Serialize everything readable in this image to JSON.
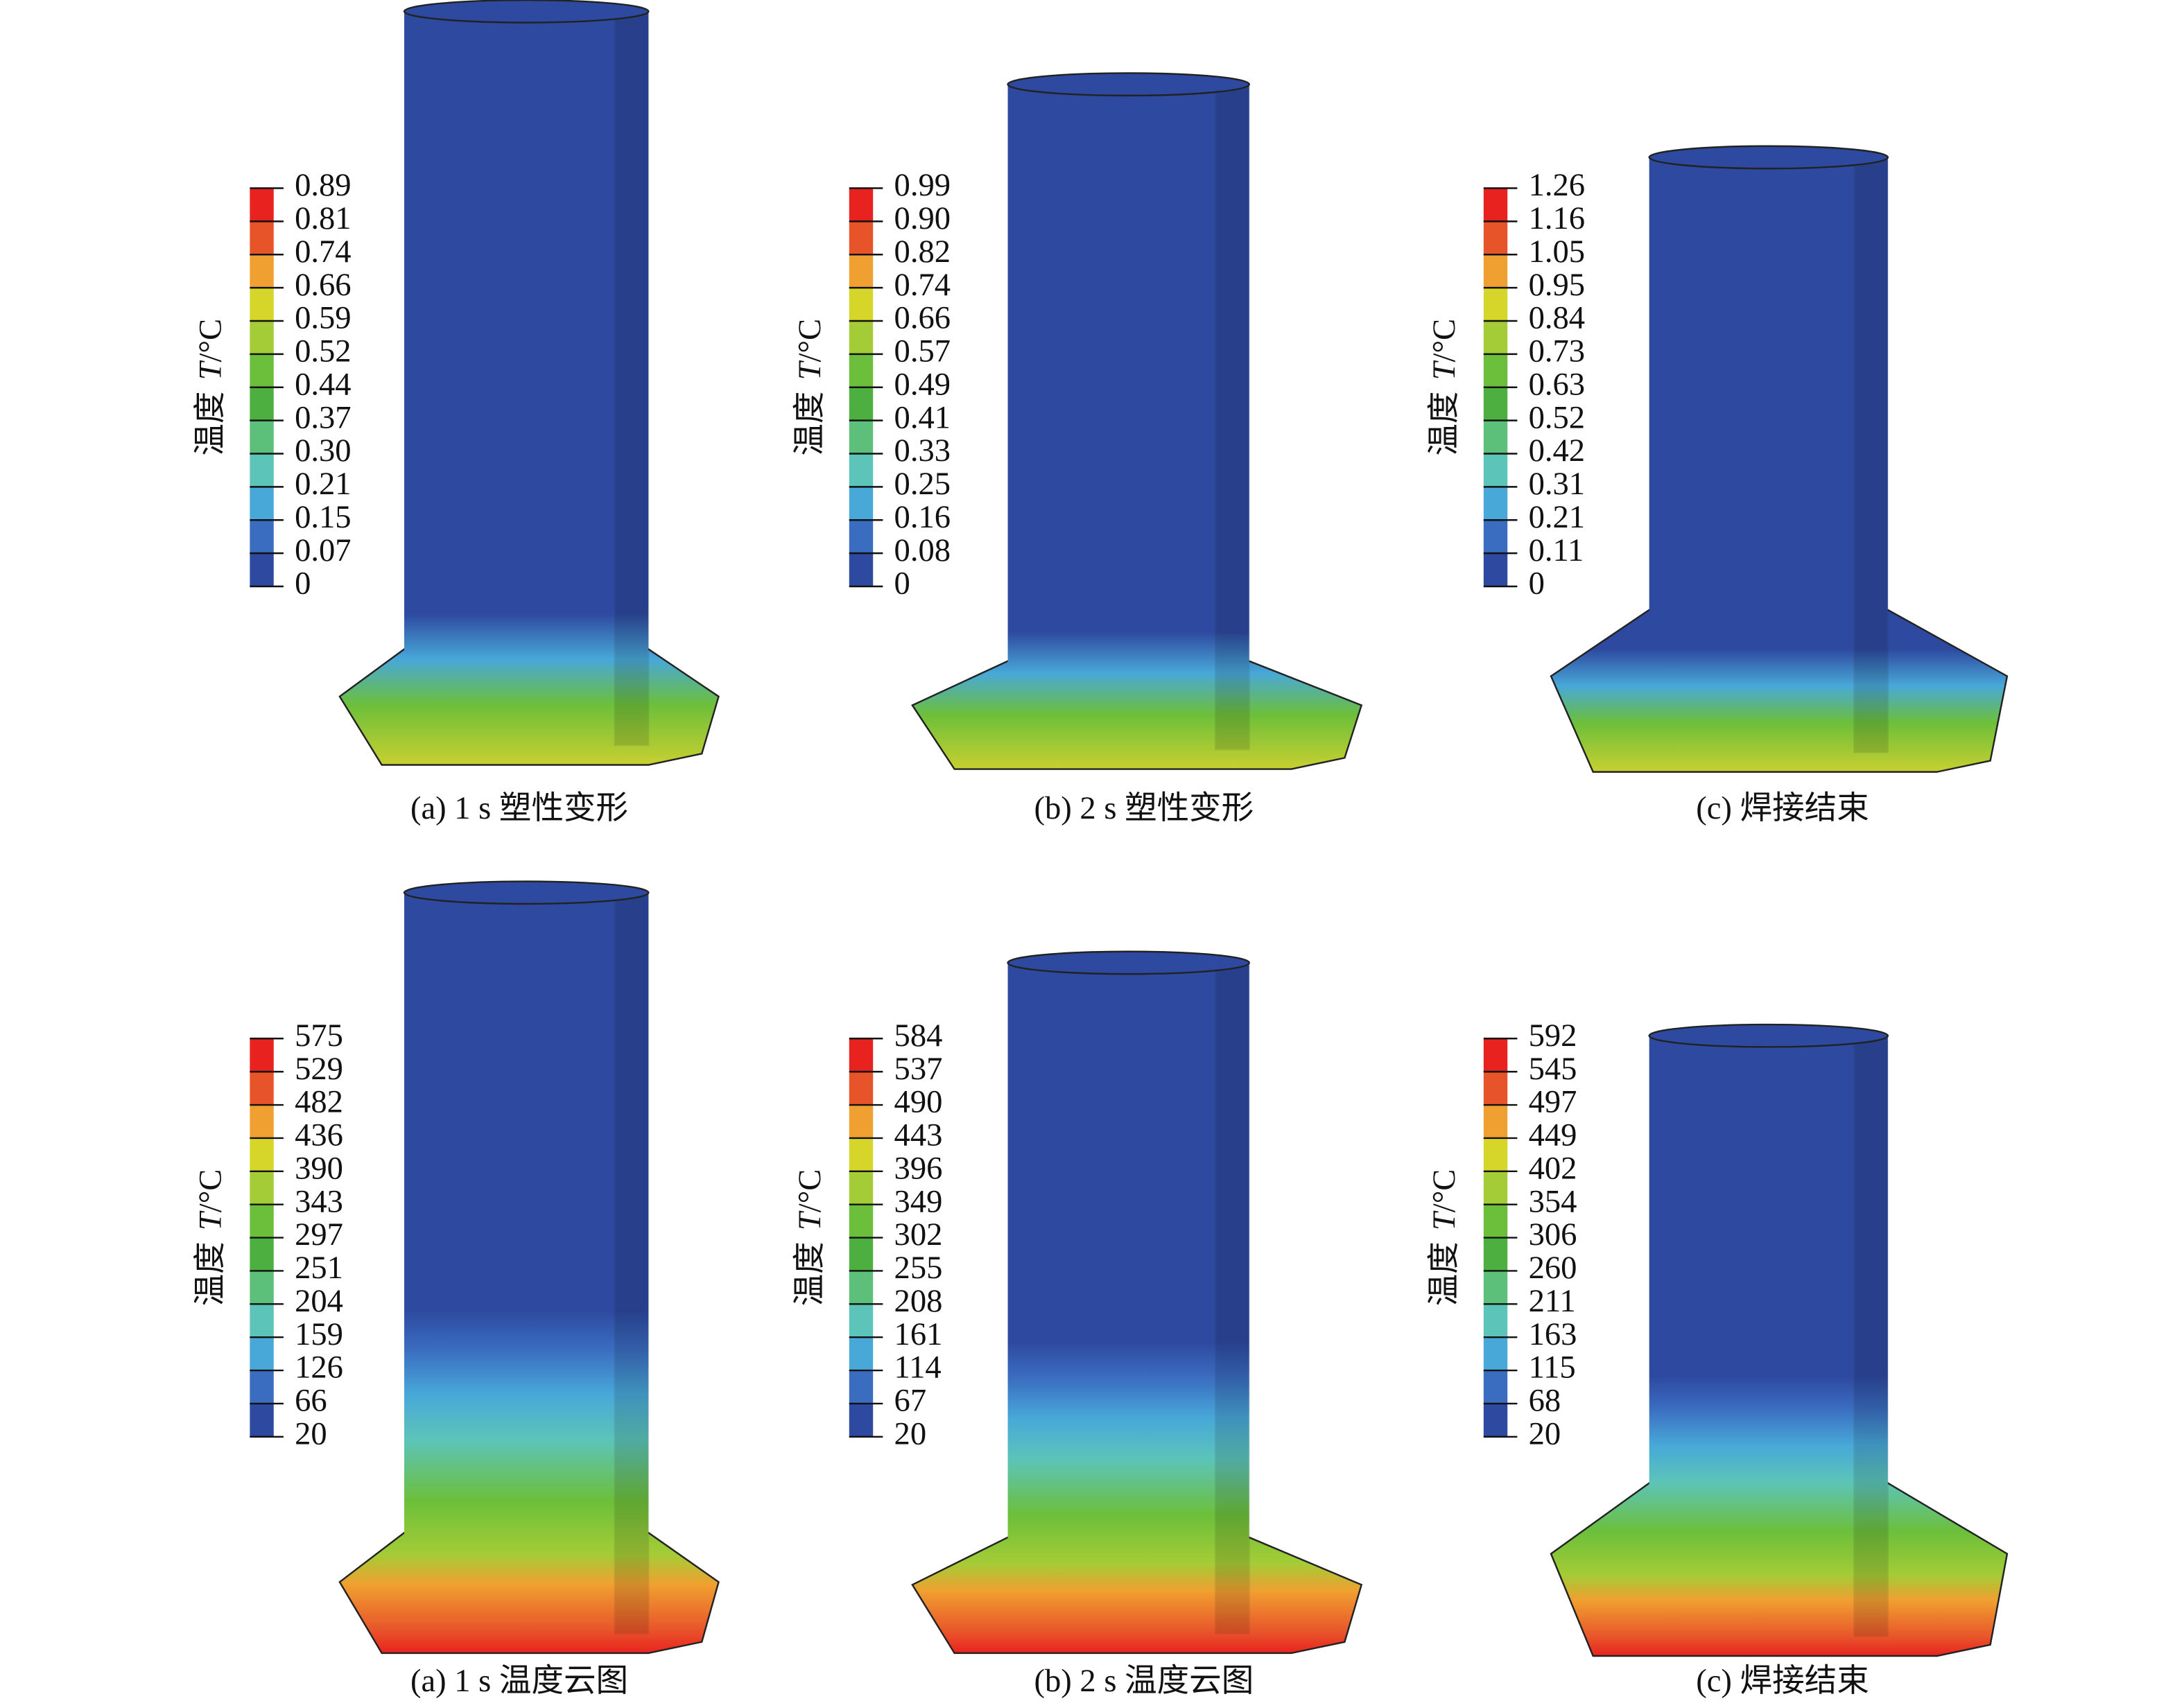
{
  "panels": [
    {
      "caption": "(a) 1 s 塑性变形",
      "legend_name": "温度",
      "legend_symbol": "T",
      "legend_unit": "/°C",
      "ticks": [
        "0.89",
        "0.81",
        "0.74",
        "0.66",
        "0.59",
        "0.52",
        "0.44",
        "0.37",
        "0.30",
        "0.21",
        "0.15",
        "0.07",
        "0"
      ]
    },
    {
      "caption": "(b) 2 s 塑性变形",
      "legend_name": "温度",
      "legend_symbol": "T",
      "legend_unit": "/°C",
      "ticks": [
        "0.99",
        "0.90",
        "0.82",
        "0.74",
        "0.66",
        "0.57",
        "0.49",
        "0.41",
        "0.33",
        "0.25",
        "0.16",
        "0.08",
        "0"
      ]
    },
    {
      "caption": "(c) 焊接结束",
      "legend_name": "温度",
      "legend_symbol": "T",
      "legend_unit": "/°C",
      "ticks": [
        "1.26",
        "1.16",
        "1.05",
        "0.95",
        "0.84",
        "0.73",
        "0.63",
        "0.52",
        "0.42",
        "0.31",
        "0.21",
        "0.11",
        "0"
      ]
    },
    {
      "caption": "(a) 1 s 温度云图",
      "legend_name": "温度",
      "legend_symbol": "T",
      "legend_unit": "/°C",
      "ticks": [
        "575",
        "529",
        "482",
        "436",
        "390",
        "343",
        "297",
        "251",
        "204",
        "159",
        "126",
        "66",
        "20"
      ]
    },
    {
      "caption": "(b) 2 s 温度云图",
      "legend_name": "温度",
      "legend_symbol": "T",
      "legend_unit": "/°C",
      "ticks": [
        "584",
        "537",
        "490",
        "443",
        "396",
        "349",
        "302",
        "255",
        "208",
        "161",
        "114",
        "67",
        "20"
      ]
    },
    {
      "caption": "(c) 焊接结束",
      "legend_name": "温度",
      "legend_symbol": "T",
      "legend_unit": "/°C",
      "ticks": [
        "592",
        "545",
        "497",
        "449",
        "402",
        "354",
        "306",
        "260",
        "211",
        "163",
        "115",
        "68",
        "20"
      ]
    }
  ]
}
